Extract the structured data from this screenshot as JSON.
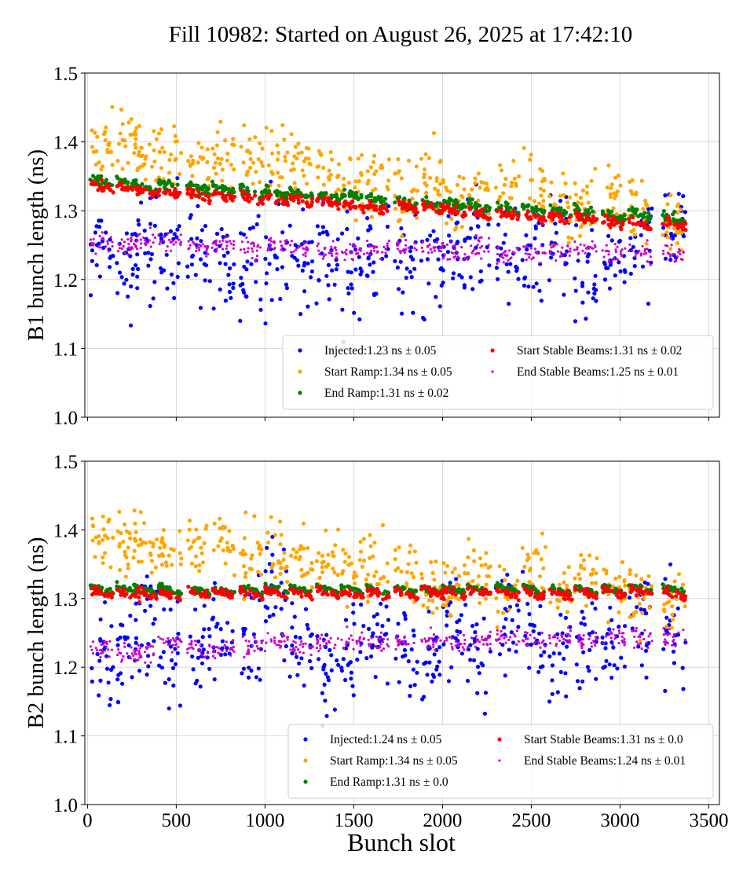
{
  "chart_data": [
    {
      "type": "scatter",
      "title": "Fill 10982: Started on August 26, 2025 at 17:42:10",
      "xlabel": "Bunch slot",
      "ylabel": "B1 bunch length (ns)",
      "xlim": [
        -15,
        3560
      ],
      "ylim": [
        1.0,
        1.5
      ],
      "xticks": [
        "0",
        "500",
        "1000",
        "1500",
        "2000",
        "2500",
        "3000",
        "3500"
      ],
      "yticks": [
        "1.0",
        "1.1",
        "1.2",
        "1.3",
        "1.4",
        "1.5"
      ],
      "grid": true,
      "legend_position": "lower-right",
      "train_starts": [
        15,
        165,
        260,
        400,
        560,
        700,
        860,
        1000,
        1140,
        1290,
        1430,
        1570,
        1730,
        1880,
        2000,
        2140,
        2300,
        2450,
        2600,
        2740,
        2900,
        3050,
        3240
      ],
      "train_length": 130,
      "series": [
        {
          "name": "Injected",
          "legend": "Injected:1.23 ns ± 0.05",
          "color": "#0000ff",
          "mean_start": 1.22,
          "mean_end": 1.24,
          "spread": 0.055,
          "size": 2.6
        },
        {
          "name": "Start Ramp",
          "legend": "Start Ramp:1.34 ns ± 0.05",
          "color": "#ffa500",
          "mean_start": 1.39,
          "mean_end": 1.3,
          "spread": 0.035,
          "size": 2.6
        },
        {
          "name": "End Ramp",
          "legend": "End Ramp:1.31 ns ± 0.02",
          "color": "#008000",
          "mean_start": 1.343,
          "mean_end": 1.288,
          "spread": 0.005,
          "size": 2.6
        },
        {
          "name": "Start Stable Beams",
          "legend": "Start Stable Beams:1.31 ns ± 0.02",
          "color": "#ff0000",
          "mean_start": 1.335,
          "mean_end": 1.28,
          "spread": 0.005,
          "size": 2.6
        },
        {
          "name": "End Stable Beams",
          "legend": "End Stable Beams:1.25 ns ± 0.01",
          "color": "#cc00cc",
          "mean_start": 1.255,
          "mean_end": 1.237,
          "spread": 0.01,
          "size": 1.6
        }
      ]
    },
    {
      "type": "scatter",
      "xlabel": "Bunch slot",
      "ylabel": "B2 bunch length (ns)",
      "xlim": [
        -15,
        3560
      ],
      "ylim": [
        1.0,
        1.5
      ],
      "xticks": [
        "0",
        "500",
        "1000",
        "1500",
        "2000",
        "2500",
        "3000",
        "3500"
      ],
      "yticks": [
        "1.0",
        "1.1",
        "1.2",
        "1.3",
        "1.4",
        "1.5"
      ],
      "grid": true,
      "legend_position": "lower-right",
      "train_starts": [
        15,
        165,
        260,
        400,
        560,
        700,
        860,
        1000,
        1140,
        1290,
        1430,
        1570,
        1730,
        1880,
        2000,
        2140,
        2300,
        2450,
        2600,
        2740,
        2900,
        3050,
        3240
      ],
      "train_length": 130,
      "series": [
        {
          "name": "Injected",
          "legend": "Injected:1.24 ns ± 0.05",
          "color": "#0000ff",
          "mean_start": 1.235,
          "mean_end": 1.25,
          "spread": 0.055,
          "size": 2.6
        },
        {
          "name": "Start Ramp",
          "legend": "Start Ramp:1.34 ns ± 0.05",
          "color": "#ffa500",
          "mean_start": 1.39,
          "mean_end": 1.3,
          "spread": 0.035,
          "size": 2.6
        },
        {
          "name": "End Ramp",
          "legend": "End Ramp:1.31 ns ± 0.0",
          "color": "#008000",
          "mean_start": 1.313,
          "mean_end": 1.313,
          "spread": 0.003,
          "size": 2.6
        },
        {
          "name": "Start Stable Beams",
          "legend": "Start Stable Beams:1.31 ns ± 0.0",
          "color": "#ff0000",
          "mean_start": 1.307,
          "mean_end": 1.309,
          "spread": 0.004,
          "size": 2.6
        },
        {
          "name": "End Stable Beams",
          "legend": "End Stable Beams:1.24 ns ± 0.01",
          "color": "#cc00cc",
          "mean_start": 1.225,
          "mean_end": 1.248,
          "spread": 0.01,
          "size": 1.6
        }
      ]
    }
  ]
}
